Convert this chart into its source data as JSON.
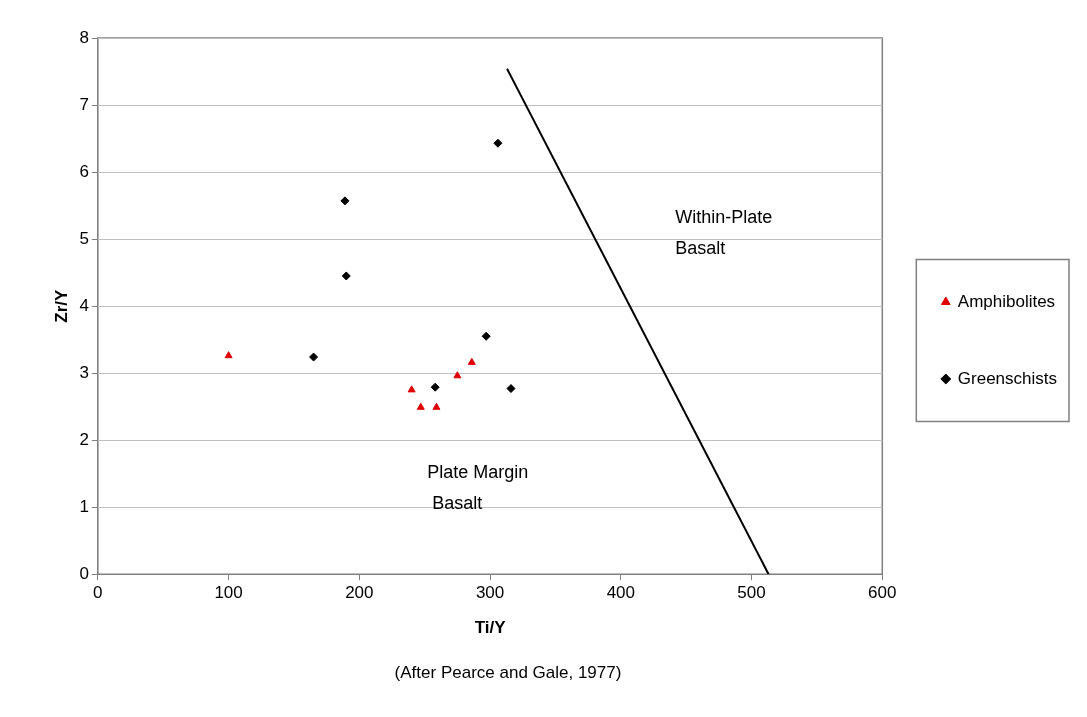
{
  "chart_data": {
    "type": "scatter",
    "xlabel": "Ti/Y",
    "ylabel": "Zr/Y",
    "xlim": [
      0,
      600
    ],
    "xticks": [
      0,
      100,
      200,
      300,
      400,
      500,
      600
    ],
    "ylim": [
      0,
      8
    ],
    "yticks": [
      0,
      1,
      2,
      3,
      4,
      5,
      6,
      7,
      8
    ],
    "grid": "y",
    "legend": "right",
    "series": [
      {
        "name": "Amphibolites",
        "color": "#e00000",
        "marker": "triangle",
        "x": [
          100,
          240,
          247,
          259,
          275,
          286
        ],
        "values": [
          3.26,
          2.75,
          2.49,
          2.49,
          2.96,
          3.16
        ]
      },
      {
        "name": "Greenschists",
        "color": "#000000",
        "marker": "diamond",
        "x": [
          165,
          189,
          190,
          258,
          297,
          306,
          316
        ],
        "values": [
          3.24,
          5.57,
          4.45,
          2.79,
          3.55,
          6.43,
          2.77
        ]
      },
      {
        "type": "line",
        "color": "#000000",
        "marker": "none",
        "x": [
          313,
          513
        ],
        "values": [
          7.54,
          0
        ]
      }
    ],
    "annotations": [
      "Within-Plate\nBasalt",
      "Plate Margin\nBasalt",
      "(After Pearce and Gale, 1977)"
    ]
  }
}
